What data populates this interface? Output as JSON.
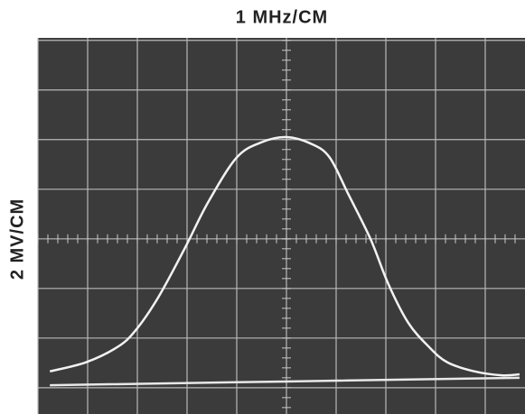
{
  "chart_data": {
    "type": "line",
    "title": "1 MHz/CM",
    "y_label": "2 MV/CM",
    "xlim": [
      -5,
      4.8
    ],
    "ylim": [
      -3.53,
      4.05
    ],
    "xticks": [
      -5,
      -4,
      -3,
      -2,
      -1,
      0,
      1,
      2,
      3,
      4
    ],
    "yticks": [
      -3,
      -2,
      -1,
      0,
      1,
      2,
      3,
      4
    ],
    "grid": true,
    "series": [
      {
        "color": "#f2f2f2",
        "x": [
          -4.76,
          -4.04,
          -3.4,
          -3.04,
          -2.58,
          -2.04,
          -1.58,
          -1.0,
          -0.49,
          0,
          0.51,
          0.87,
          1.24,
          1.69,
          2.05,
          2.45,
          2.87,
          3.24,
          3.78,
          4.33,
          4.69
        ],
        "values": [
          -2.67,
          -2.49,
          -2.18,
          -1.85,
          -1.18,
          -0.18,
          0.73,
          1.64,
          1.95,
          2.05,
          1.91,
          1.64,
          0.91,
          0,
          -0.91,
          -1.69,
          -2.18,
          -2.49,
          -2.67,
          -2.75,
          -2.73
        ]
      },
      {
        "color": "#e8e8e8",
        "x": [
          -4.76,
          4.69
        ],
        "values": [
          -2.95,
          -2.8
        ]
      }
    ]
  }
}
